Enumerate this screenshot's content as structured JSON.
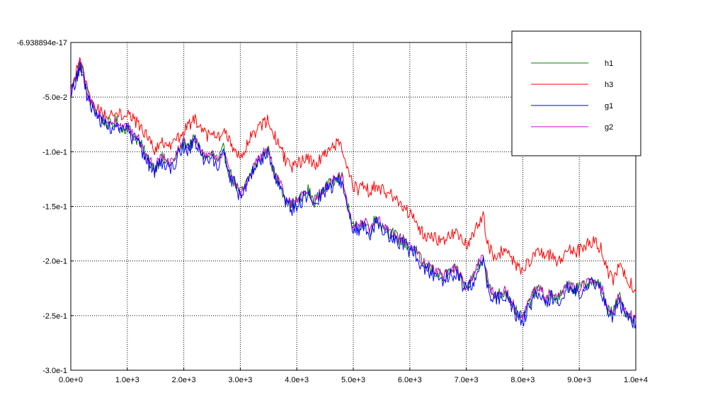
{
  "chart_data": {
    "type": "line",
    "title": "",
    "xlabel": "",
    "ylabel": "",
    "xlim": [
      0,
      10000
    ],
    "ylim": [
      -0.3,
      -6.938894e-17
    ],
    "grid": true,
    "legend_position": "top-right",
    "x_ticks": [
      {
        "value": 0,
        "label": "0.0e+0"
      },
      {
        "value": 1000,
        "label": "1.0e+3"
      },
      {
        "value": 2000,
        "label": "2.0e+3"
      },
      {
        "value": 3000,
        "label": "3.0e+3"
      },
      {
        "value": 4000,
        "label": "4.0e+3"
      },
      {
        "value": 5000,
        "label": "5.0e+3"
      },
      {
        "value": 6000,
        "label": "6.0e+3"
      },
      {
        "value": 7000,
        "label": "7.0e+3"
      },
      {
        "value": 8000,
        "label": "8.0e+3"
      },
      {
        "value": 9000,
        "label": "9.0e+3"
      },
      {
        "value": 10000,
        "label": "1.0e+4"
      }
    ],
    "y_ticks": [
      {
        "value": -6.938894e-17,
        "label": "-6.938894e-17"
      },
      {
        "value": -0.05,
        "label": "-5.0e-2"
      },
      {
        "value": -0.1,
        "label": "-1.0e-1"
      },
      {
        "value": -0.15,
        "label": "-1.5e-1"
      },
      {
        "value": -0.2,
        "label": "-2.0e-1"
      },
      {
        "value": -0.25,
        "label": "-2.5e-1"
      },
      {
        "value": -0.3,
        "label": "-3.0e-1"
      }
    ],
    "x": [
      0,
      100,
      150,
      200,
      300,
      400,
      500,
      600,
      700,
      800,
      900,
      1000,
      1100,
      1200,
      1300,
      1400,
      1500,
      1600,
      1700,
      1800,
      1900,
      2000,
      2100,
      2200,
      2300,
      2400,
      2500,
      2600,
      2700,
      2800,
      2900,
      3000,
      3100,
      3200,
      3300,
      3400,
      3500,
      3600,
      3700,
      3800,
      3900,
      4000,
      4100,
      4200,
      4300,
      4400,
      4500,
      4600,
      4700,
      4800,
      4900,
      5000,
      5100,
      5200,
      5300,
      5400,
      5500,
      5600,
      5700,
      5800,
      5900,
      6000,
      6100,
      6200,
      6300,
      6400,
      6500,
      6600,
      6700,
      6800,
      6900,
      7000,
      7100,
      7200,
      7300,
      7400,
      7500,
      7600,
      7700,
      7800,
      7900,
      8000,
      8100,
      8200,
      8300,
      8400,
      8500,
      8600,
      8700,
      8800,
      8900,
      9000,
      9100,
      9200,
      9300,
      9400,
      9500,
      9600,
      9700,
      9800,
      9900,
      10000
    ],
    "series": [
      {
        "name": "h1",
        "color": "#008000",
        "jitter": 0.006,
        "values": [
          -0.047,
          -0.03,
          -0.02,
          -0.025,
          -0.048,
          -0.06,
          -0.067,
          -0.072,
          -0.075,
          -0.072,
          -0.08,
          -0.077,
          -0.085,
          -0.09,
          -0.1,
          -0.11,
          -0.115,
          -0.105,
          -0.11,
          -0.112,
          -0.1,
          -0.092,
          -0.095,
          -0.088,
          -0.1,
          -0.106,
          -0.102,
          -0.11,
          -0.098,
          -0.118,
          -0.128,
          -0.138,
          -0.13,
          -0.118,
          -0.11,
          -0.102,
          -0.1,
          -0.12,
          -0.13,
          -0.142,
          -0.15,
          -0.145,
          -0.142,
          -0.135,
          -0.146,
          -0.14,
          -0.132,
          -0.13,
          -0.122,
          -0.124,
          -0.15,
          -0.17,
          -0.168,
          -0.165,
          -0.172,
          -0.16,
          -0.168,
          -0.172,
          -0.175,
          -0.18,
          -0.182,
          -0.188,
          -0.19,
          -0.2,
          -0.205,
          -0.208,
          -0.212,
          -0.215,
          -0.21,
          -0.208,
          -0.215,
          -0.225,
          -0.218,
          -0.205,
          -0.195,
          -0.225,
          -0.232,
          -0.23,
          -0.228,
          -0.238,
          -0.248,
          -0.252,
          -0.24,
          -0.23,
          -0.225,
          -0.235,
          -0.23,
          -0.236,
          -0.23,
          -0.222,
          -0.225,
          -0.225,
          -0.222,
          -0.218,
          -0.22,
          -0.225,
          -0.245,
          -0.248,
          -0.232,
          -0.245,
          -0.25,
          -0.255
        ]
      },
      {
        "name": "h3",
        "color": "#ff0000",
        "jitter": 0.006,
        "values": [
          -0.045,
          -0.028,
          -0.018,
          -0.022,
          -0.045,
          -0.056,
          -0.062,
          -0.066,
          -0.066,
          -0.062,
          -0.066,
          -0.065,
          -0.07,
          -0.075,
          -0.082,
          -0.092,
          -0.098,
          -0.092,
          -0.096,
          -0.095,
          -0.088,
          -0.08,
          -0.075,
          -0.07,
          -0.08,
          -0.086,
          -0.085,
          -0.088,
          -0.08,
          -0.09,
          -0.098,
          -0.104,
          -0.095,
          -0.086,
          -0.08,
          -0.074,
          -0.072,
          -0.085,
          -0.094,
          -0.108,
          -0.116,
          -0.112,
          -0.108,
          -0.104,
          -0.112,
          -0.108,
          -0.1,
          -0.098,
          -0.092,
          -0.096,
          -0.118,
          -0.132,
          -0.135,
          -0.132,
          -0.138,
          -0.13,
          -0.135,
          -0.138,
          -0.14,
          -0.145,
          -0.15,
          -0.158,
          -0.162,
          -0.172,
          -0.178,
          -0.178,
          -0.18,
          -0.182,
          -0.178,
          -0.175,
          -0.18,
          -0.185,
          -0.178,
          -0.168,
          -0.16,
          -0.188,
          -0.195,
          -0.192,
          -0.19,
          -0.198,
          -0.204,
          -0.208,
          -0.202,
          -0.196,
          -0.192,
          -0.198,
          -0.194,
          -0.2,
          -0.196,
          -0.19,
          -0.192,
          -0.19,
          -0.186,
          -0.182,
          -0.185,
          -0.19,
          -0.21,
          -0.218,
          -0.205,
          -0.212,
          -0.22,
          -0.228
        ]
      },
      {
        "name": "g1",
        "color": "#0000ff",
        "jitter": 0.007,
        "values": [
          -0.049,
          -0.033,
          -0.023,
          -0.028,
          -0.051,
          -0.063,
          -0.07,
          -0.075,
          -0.078,
          -0.075,
          -0.083,
          -0.08,
          -0.088,
          -0.093,
          -0.103,
          -0.113,
          -0.118,
          -0.108,
          -0.113,
          -0.115,
          -0.103,
          -0.095,
          -0.098,
          -0.091,
          -0.103,
          -0.109,
          -0.105,
          -0.113,
          -0.101,
          -0.121,
          -0.131,
          -0.141,
          -0.133,
          -0.121,
          -0.113,
          -0.105,
          -0.103,
          -0.123,
          -0.133,
          -0.145,
          -0.153,
          -0.148,
          -0.145,
          -0.138,
          -0.149,
          -0.143,
          -0.135,
          -0.133,
          -0.125,
          -0.127,
          -0.153,
          -0.173,
          -0.171,
          -0.168,
          -0.175,
          -0.163,
          -0.171,
          -0.175,
          -0.178,
          -0.183,
          -0.185,
          -0.191,
          -0.193,
          -0.203,
          -0.208,
          -0.211,
          -0.215,
          -0.218,
          -0.213,
          -0.211,
          -0.218,
          -0.228,
          -0.221,
          -0.208,
          -0.198,
          -0.228,
          -0.235,
          -0.233,
          -0.231,
          -0.241,
          -0.251,
          -0.255,
          -0.243,
          -0.233,
          -0.228,
          -0.238,
          -0.233,
          -0.239,
          -0.233,
          -0.225,
          -0.228,
          -0.228,
          -0.225,
          -0.221,
          -0.223,
          -0.228,
          -0.248,
          -0.251,
          -0.235,
          -0.248,
          -0.253,
          -0.258
        ]
      },
      {
        "name": "g2",
        "color": "#cc00cc",
        "jitter": 0.005,
        "values": [
          -0.046,
          -0.029,
          -0.019,
          -0.024,
          -0.047,
          -0.059,
          -0.066,
          -0.071,
          -0.074,
          -0.071,
          -0.079,
          -0.076,
          -0.084,
          -0.089,
          -0.099,
          -0.109,
          -0.114,
          -0.104,
          -0.109,
          -0.111,
          -0.099,
          -0.091,
          -0.094,
          -0.087,
          -0.099,
          -0.105,
          -0.101,
          -0.109,
          -0.097,
          -0.117,
          -0.127,
          -0.137,
          -0.129,
          -0.117,
          -0.109,
          -0.101,
          -0.099,
          -0.119,
          -0.129,
          -0.141,
          -0.149,
          -0.144,
          -0.141,
          -0.134,
          -0.145,
          -0.139,
          -0.131,
          -0.129,
          -0.121,
          -0.123,
          -0.149,
          -0.169,
          -0.167,
          -0.164,
          -0.171,
          -0.159,
          -0.167,
          -0.171,
          -0.174,
          -0.179,
          -0.181,
          -0.187,
          -0.189,
          -0.199,
          -0.204,
          -0.207,
          -0.211,
          -0.214,
          -0.209,
          -0.207,
          -0.214,
          -0.224,
          -0.217,
          -0.204,
          -0.194,
          -0.224,
          -0.231,
          -0.229,
          -0.227,
          -0.237,
          -0.247,
          -0.251,
          -0.239,
          -0.229,
          -0.224,
          -0.234,
          -0.229,
          -0.235,
          -0.229,
          -0.221,
          -0.224,
          -0.224,
          -0.221,
          -0.217,
          -0.219,
          -0.224,
          -0.244,
          -0.247,
          -0.231,
          -0.244,
          -0.249,
          -0.254
        ]
      }
    ]
  }
}
